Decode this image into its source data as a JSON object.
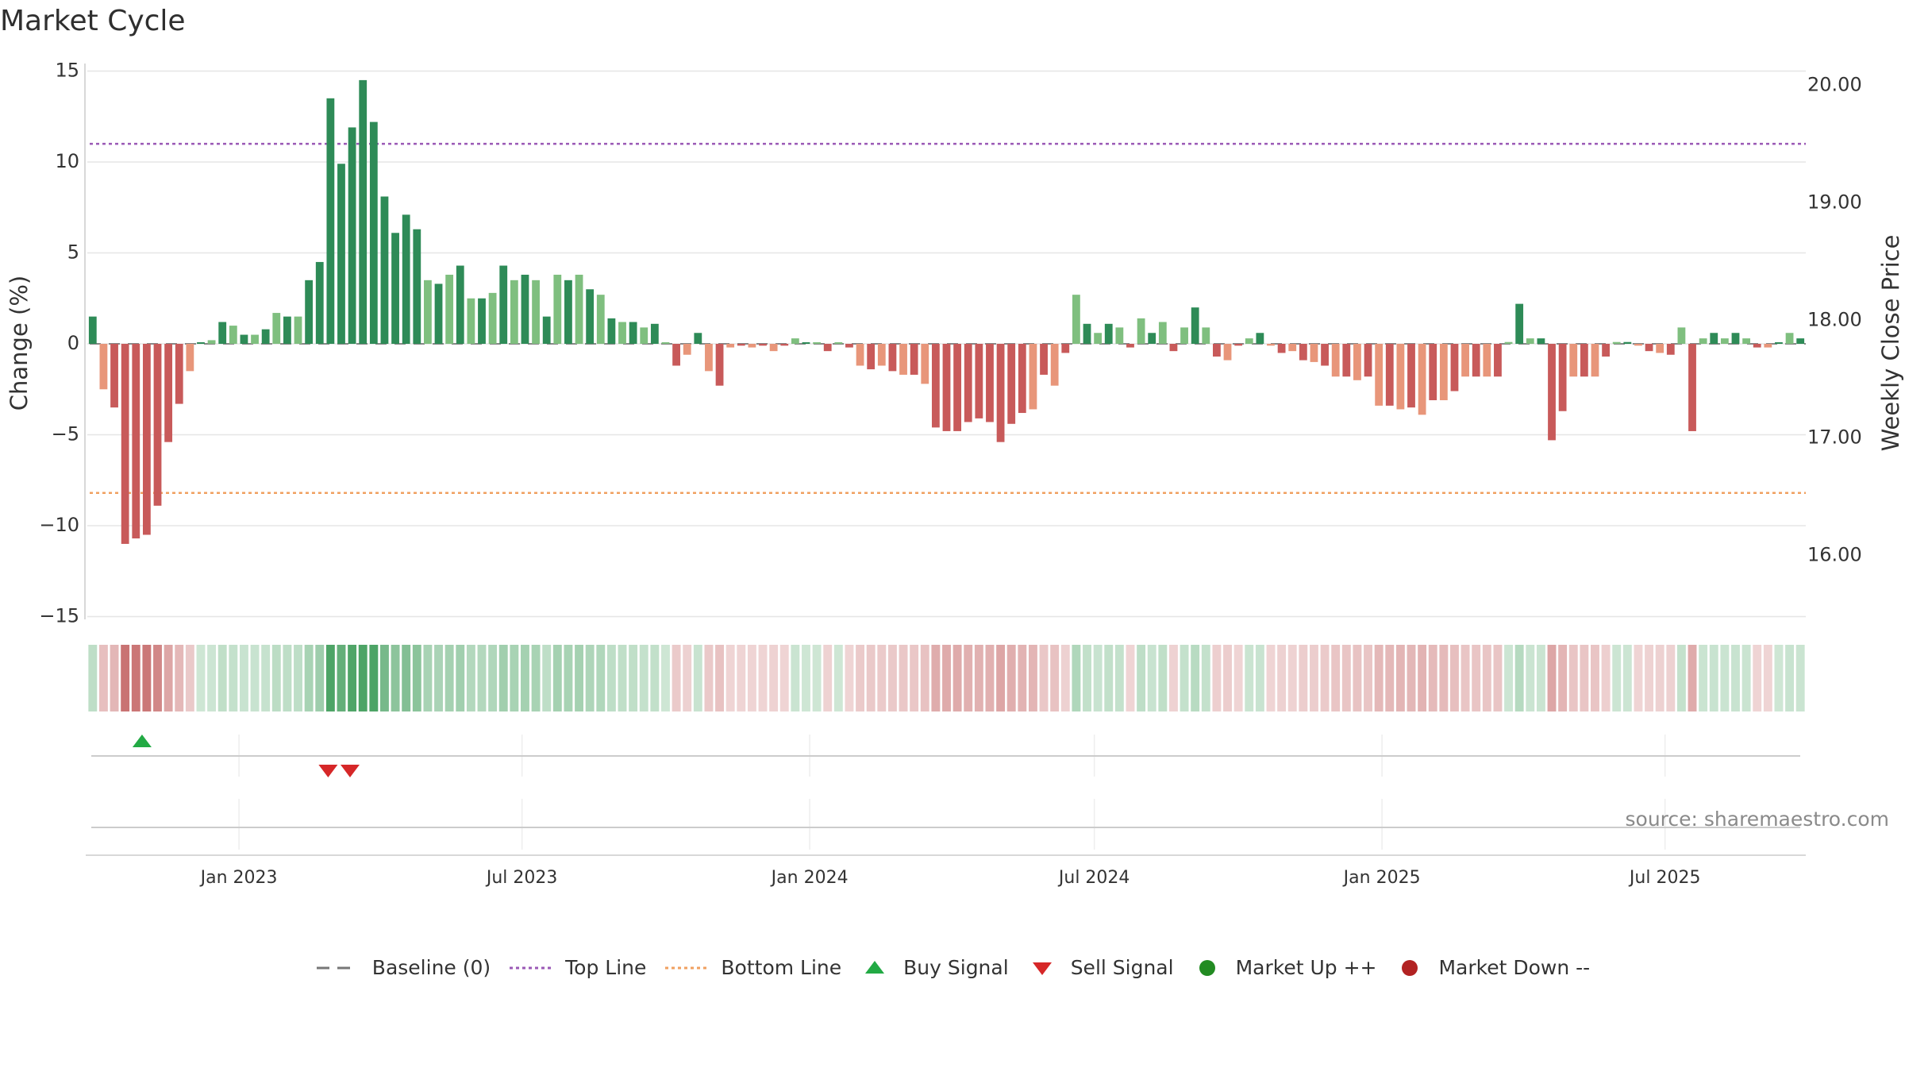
{
  "title": "Market Cycle",
  "source": "source: sharemaestro.com",
  "colors": {
    "up_strong": "#2e8b57",
    "up_light": "#7fbf7f",
    "down_strong": "#c85a5a",
    "down_light": "#e8967a",
    "top_line": "#9b59b6",
    "bottom_line": "#f0a060",
    "buy": "#22aa44",
    "sell": "#d62728",
    "market_up": "#228b22",
    "market_down": "#b22222"
  },
  "legend": [
    {
      "key": "baseline",
      "label": "Baseline (0)",
      "icon": "dash-line-icon"
    },
    {
      "key": "top",
      "label": "Top Line",
      "icon": "dotted-line-icon"
    },
    {
      "key": "bottom",
      "label": "Bottom Line",
      "icon": "dotted-line-icon"
    },
    {
      "key": "buy",
      "label": "Buy Signal",
      "icon": "triangle-up-icon"
    },
    {
      "key": "sell",
      "label": "Sell Signal",
      "icon": "triangle-down-icon"
    },
    {
      "key": "mup",
      "label": "Market Up ++",
      "icon": "circle-icon"
    },
    {
      "key": "mdown",
      "label": "Market Down --",
      "icon": "circle-icon"
    }
  ],
  "chart_data": {
    "type": "bar",
    "title": "Market Cycle",
    "ylabel": "Change (%)",
    "y2label": "Weekly Close Price",
    "ylim": [
      -15.5,
      15.5
    ],
    "yticks": [
      15,
      10,
      5,
      0,
      -5,
      -10,
      -15
    ],
    "ytick_labels": [
      "15",
      "10",
      "5",
      "0",
      "−5",
      "−10",
      "−15"
    ],
    "y2lim": [
      15.4,
      20.2
    ],
    "y2ticks": [
      20.0,
      19.0,
      18.0,
      17.0,
      16.0
    ],
    "y2tick_labels": [
      "20.00",
      "19.00",
      "18.00",
      "17.00",
      "16.00"
    ],
    "top_line": 11.0,
    "bottom_line": -8.2,
    "baseline": 0,
    "x_start": "2022-09-26",
    "x_end": "2025-09-29",
    "xtick_dates": [
      "2023-01-01",
      "2023-07-01",
      "2024-01-01",
      "2024-07-01",
      "2025-01-01",
      "2025-07-01"
    ],
    "xtick_labels": [
      "Jan 2023",
      "Jul 2023",
      "Jan 2024",
      "Jul 2024",
      "Jan 2025",
      "Jul 2025"
    ],
    "grid": true,
    "legend_position": "bottom",
    "values": [
      1.5,
      -2.5,
      -3.5,
      -11.0,
      -10.7,
      -10.5,
      -8.9,
      -5.4,
      -3.3,
      -1.5,
      0.0,
      0.2,
      1.2,
      1.0,
      0.5,
      0.5,
      0.8,
      1.7,
      1.5,
      1.5,
      3.5,
      4.5,
      13.5,
      9.9,
      11.9,
      14.5,
      12.2,
      8.1,
      6.1,
      7.1,
      6.3,
      3.5,
      3.3,
      3.8,
      4.3,
      2.5,
      2.5,
      2.8,
      4.3,
      3.5,
      3.8,
      3.5,
      1.5,
      3.8,
      3.5,
      3.8,
      3.0,
      2.7,
      1.4,
      1.2,
      1.2,
      0.9,
      1.1,
      0.0,
      -1.2,
      -0.6,
      0.6,
      -1.5,
      -2.3,
      -0.2,
      -0.1,
      -0.2,
      -0.1,
      -0.4,
      -0.1,
      0.3,
      0.0,
      0.0,
      -0.4,
      0.0,
      -0.2,
      -1.2,
      -1.4,
      -1.2,
      -1.5,
      -1.7,
      -1.7,
      -2.2,
      -4.6,
      -4.8,
      -4.8,
      -4.3,
      -4.1,
      -4.3,
      -5.4,
      -4.4,
      -3.8,
      -3.6,
      -1.7,
      -2.3,
      -0.5,
      2.7,
      1.1,
      0.6,
      1.1,
      0.9,
      -0.2,
      1.4,
      0.6,
      1.2,
      -0.4,
      0.9,
      2.0,
      0.9,
      -0.7,
      -0.9,
      -0.1,
      0.3,
      0.6,
      -0.1,
      -0.5,
      -0.4,
      -0.9,
      -1.0,
      -1.2,
      -1.8,
      -1.8,
      -2.0,
      -1.8,
      -3.4,
      -3.4,
      -3.6,
      -3.5,
      -3.9,
      -3.1,
      -3.1,
      -2.6,
      -1.8,
      -1.8,
      -1.8,
      -1.8,
      0.1,
      2.2,
      0.3,
      0.3,
      -5.3,
      -3.7,
      -1.8,
      -1.8,
      -1.8,
      -0.7,
      0.1,
      0.1,
      -0.1,
      -0.4,
      -0.5,
      -0.6,
      0.9,
      -4.8,
      0.3,
      0.6,
      0.3,
      0.6,
      0.3,
      -0.2,
      -0.2,
      0.0,
      0.6,
      0.3
    ],
    "buy_signals": [
      "2022-10-31"
    ],
    "sell_signals": [
      "2023-02-27",
      "2023-03-13"
    ]
  }
}
